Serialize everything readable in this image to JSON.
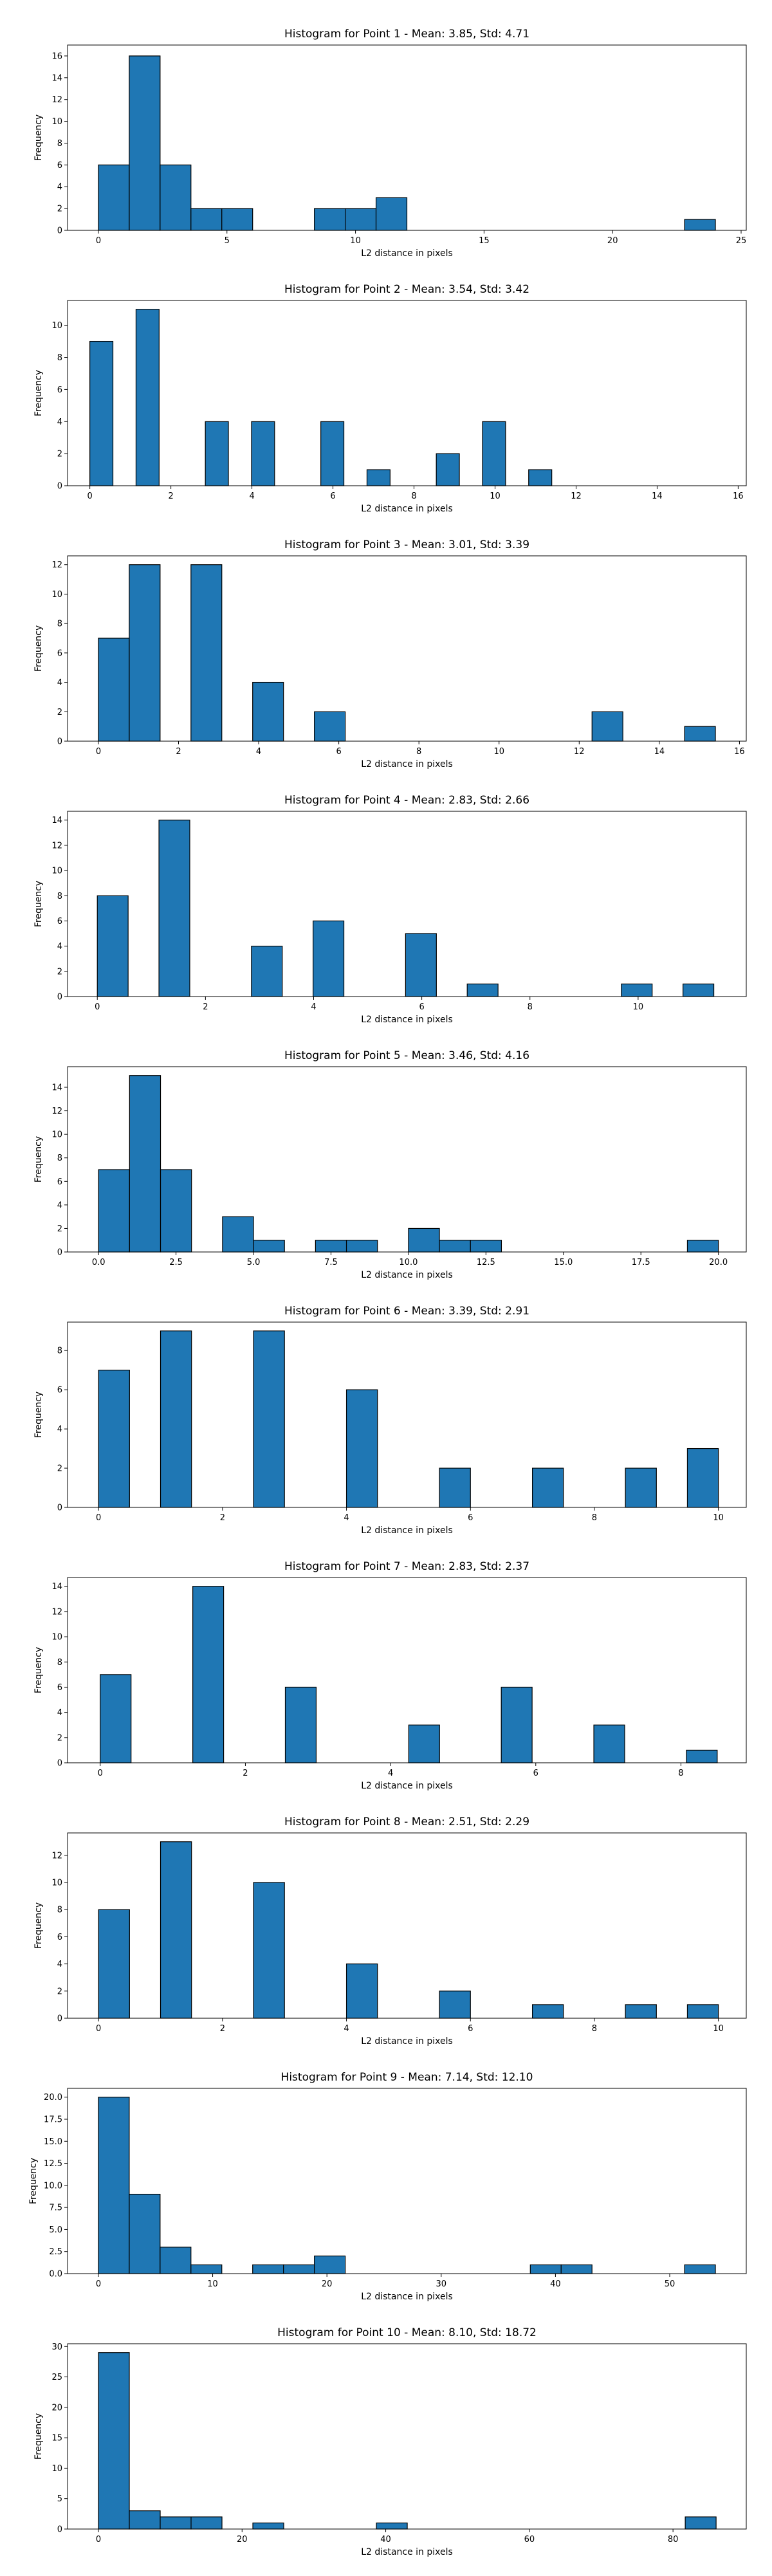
{
  "figure": {
    "xlabel": "L2 distance in pixels",
    "ylabel": "Frequency",
    "bar_color": "#1f77b4",
    "edge_color": "#000000"
  },
  "chart_data": [
    {
      "type": "bar",
      "title": "Histogram for Point 1 - Mean: 3.85, Std: 4.71",
      "xlabel": "L2 distance in pixels",
      "ylabel": "Frequency",
      "xlim": [
        -1.2,
        25.2
      ],
      "ylim": [
        0,
        17
      ],
      "xticks": [
        0,
        5,
        10,
        15,
        20,
        25
      ],
      "xtick_labels": [
        "0",
        "5",
        "10",
        "15",
        "20",
        "25"
      ],
      "yticks": [
        0,
        2,
        4,
        6,
        8,
        10,
        12,
        14,
        16
      ],
      "bin_width": 1.2,
      "bins": [
        {
          "start": 0,
          "count": 6
        },
        {
          "start": 1.2,
          "count": 16
        },
        {
          "start": 2.4,
          "count": 6
        },
        {
          "start": 3.6,
          "count": 2
        },
        {
          "start": 4.8,
          "count": 2
        },
        {
          "start": 8.4,
          "count": 2
        },
        {
          "start": 9.6,
          "count": 2
        },
        {
          "start": 10.8,
          "count": 3
        },
        {
          "start": 22.8,
          "count": 1
        }
      ]
    },
    {
      "type": "bar",
      "title": "Histogram for Point 2 - Mean: 3.54, Std: 3.42",
      "xlabel": "L2 distance in pixels",
      "ylabel": "Frequency",
      "xlim": [
        -0.55,
        16.2
      ],
      "ylim": [
        0,
        11.55
      ],
      "xticks": [
        0,
        2,
        4,
        6,
        8,
        10,
        12,
        14,
        16
      ],
      "xtick_labels": [
        "0",
        "2",
        "4",
        "6",
        "8",
        "10",
        "12",
        "14",
        "16"
      ],
      "yticks": [
        0,
        2,
        4,
        6,
        8,
        10
      ],
      "bin_width": 0.57,
      "bins": [
        {
          "start": 0,
          "count": 9
        },
        {
          "start": 1.14,
          "count": 11
        },
        {
          "start": 2.85,
          "count": 4
        },
        {
          "start": 3.99,
          "count": 4
        },
        {
          "start": 5.7,
          "count": 4
        },
        {
          "start": 6.84,
          "count": 1
        },
        {
          "start": 8.55,
          "count": 2
        },
        {
          "start": 9.69,
          "count": 4
        },
        {
          "start": 10.83,
          "count": 1
        }
      ]
    },
    {
      "type": "bar",
      "title": "Histogram for Point 3 - Mean: 3.01, Std: 3.39",
      "xlabel": "L2 distance in pixels",
      "ylabel": "Frequency",
      "xlim": [
        -0.77,
        16.17
      ],
      "ylim": [
        0,
        12.6
      ],
      "xticks": [
        0,
        2,
        4,
        6,
        8,
        10,
        12,
        14,
        16
      ],
      "xtick_labels": [
        "0",
        "2",
        "4",
        "6",
        "8",
        "10",
        "12",
        "14",
        "16"
      ],
      "yticks": [
        0,
        2,
        4,
        6,
        8,
        10,
        12
      ],
      "bin_width": 0.77,
      "bins": [
        {
          "start": 0,
          "count": 7
        },
        {
          "start": 0.77,
          "count": 12
        },
        {
          "start": 2.31,
          "count": 12
        },
        {
          "start": 3.85,
          "count": 4
        },
        {
          "start": 5.39,
          "count": 2
        },
        {
          "start": 12.32,
          "count": 2
        },
        {
          "start": 14.63,
          "count": 1
        }
      ]
    },
    {
      "type": "bar",
      "title": "Histogram for Point 4 - Mean: 2.83, Std: 2.66",
      "xlabel": "L2 distance in pixels",
      "ylabel": "Frequency",
      "xlim": [
        -0.55,
        12.0
      ],
      "ylim": [
        0,
        14.7
      ],
      "xticks": [
        0,
        2,
        4,
        6,
        8,
        10
      ],
      "xtick_labels": [
        "0",
        "2",
        "4",
        "6",
        "8",
        "10"
      ],
      "yticks": [
        0,
        2,
        4,
        6,
        8,
        10,
        12,
        14
      ],
      "bin_width": 0.57,
      "bins": [
        {
          "start": 0,
          "count": 8
        },
        {
          "start": 1.14,
          "count": 14
        },
        {
          "start": 2.85,
          "count": 4
        },
        {
          "start": 3.99,
          "count": 6
        },
        {
          "start": 5.7,
          "count": 5
        },
        {
          "start": 6.84,
          "count": 1
        },
        {
          "start": 9.69,
          "count": 1
        },
        {
          "start": 10.83,
          "count": 1
        }
      ]
    },
    {
      "type": "bar",
      "title": "Histogram for Point 5 - Mean: 3.46, Std: 4.16",
      "xlabel": "L2 distance in pixels",
      "ylabel": "Frequency",
      "xlim": [
        -1.0,
        20.9
      ],
      "ylim": [
        0,
        15.75
      ],
      "xticks": [
        0,
        2.5,
        5,
        7.5,
        10,
        12.5,
        15,
        17.5,
        20
      ],
      "xtick_labels": [
        "0.0",
        "2.5",
        "5.0",
        "7.5",
        "10.0",
        "12.5",
        "15.0",
        "17.5",
        "20.0"
      ],
      "yticks": [
        0,
        2,
        4,
        6,
        8,
        10,
        12,
        14
      ],
      "bin_width": 1.0,
      "bins": [
        {
          "start": 0,
          "count": 7
        },
        {
          "start": 1.0,
          "count": 15
        },
        {
          "start": 2.0,
          "count": 7
        },
        {
          "start": 4.0,
          "count": 3
        },
        {
          "start": 5.0,
          "count": 1
        },
        {
          "start": 7.0,
          "count": 1
        },
        {
          "start": 8.0,
          "count": 1
        },
        {
          "start": 10.0,
          "count": 2
        },
        {
          "start": 11.0,
          "count": 1
        },
        {
          "start": 12.0,
          "count": 1
        },
        {
          "start": 19.0,
          "count": 1
        }
      ]
    },
    {
      "type": "bar",
      "title": "Histogram for Point 6 - Mean: 3.39, Std: 2.91",
      "xlabel": "L2 distance in pixels",
      "ylabel": "Frequency",
      "xlim": [
        -0.5,
        10.45
      ],
      "ylim": [
        0,
        9.45
      ],
      "xticks": [
        0,
        2,
        4,
        6,
        8,
        10
      ],
      "xtick_labels": [
        "0",
        "2",
        "4",
        "6",
        "8",
        "10"
      ],
      "yticks": [
        0,
        2,
        4,
        6,
        8
      ],
      "bin_width": 0.5,
      "bins": [
        {
          "start": 0,
          "count": 7
        },
        {
          "start": 1.0,
          "count": 9
        },
        {
          "start": 2.5,
          "count": 9
        },
        {
          "start": 4.0,
          "count": 6
        },
        {
          "start": 5.5,
          "count": 2
        },
        {
          "start": 7.0,
          "count": 2
        },
        {
          "start": 8.5,
          "count": 2
        },
        {
          "start": 9.5,
          "count": 3
        }
      ]
    },
    {
      "type": "bar",
      "title": "Histogram for Point 7 - Mean: 2.83, Std: 2.37",
      "xlabel": "L2 distance in pixels",
      "ylabel": "Frequency",
      "xlim": [
        -0.45,
        8.9
      ],
      "ylim": [
        0,
        14.7
      ],
      "xticks": [
        0,
        2,
        4,
        6,
        8
      ],
      "xtick_labels": [
        "0",
        "2",
        "4",
        "6",
        "8"
      ],
      "yticks": [
        0,
        2,
        4,
        6,
        8,
        10,
        12,
        14
      ],
      "bin_width": 0.425,
      "bins": [
        {
          "start": 0,
          "count": 7
        },
        {
          "start": 1.275,
          "count": 14
        },
        {
          "start": 2.55,
          "count": 6
        },
        {
          "start": 4.25,
          "count": 3
        },
        {
          "start": 5.525,
          "count": 6
        },
        {
          "start": 6.8,
          "count": 3
        },
        {
          "start": 8.075,
          "count": 1
        }
      ]
    },
    {
      "type": "bar",
      "title": "Histogram for Point 8 - Mean: 2.51, Std: 2.29",
      "xlabel": "L2 distance in pixels",
      "ylabel": "Frequency",
      "xlim": [
        -0.5,
        10.45
      ],
      "ylim": [
        0,
        13.65
      ],
      "xticks": [
        0,
        2,
        4,
        6,
        8,
        10
      ],
      "xtick_labels": [
        "0",
        "2",
        "4",
        "6",
        "8",
        "10"
      ],
      "yticks": [
        0,
        2,
        4,
        6,
        8,
        10,
        12
      ],
      "bin_width": 0.5,
      "bins": [
        {
          "start": 0,
          "count": 8
        },
        {
          "start": 1.0,
          "count": 13
        },
        {
          "start": 2.5,
          "count": 10
        },
        {
          "start": 4.0,
          "count": 4
        },
        {
          "start": 5.5,
          "count": 2
        },
        {
          "start": 7.0,
          "count": 1
        },
        {
          "start": 8.5,
          "count": 1
        },
        {
          "start": 9.5,
          "count": 1
        }
      ]
    },
    {
      "type": "bar",
      "title": "Histogram for Point 9 - Mean: 7.14, Std: 12.10",
      "xlabel": "L2 distance in pixels",
      "ylabel": "Frequency",
      "xlim": [
        -2.7,
        56.7
      ],
      "ylim": [
        0,
        21.0
      ],
      "xticks": [
        0,
        10,
        20,
        30,
        40,
        50
      ],
      "xtick_labels": [
        "0",
        "10",
        "20",
        "30",
        "40",
        "50"
      ],
      "yticks": [
        0,
        2.5,
        5,
        7.5,
        10,
        12.5,
        15,
        17.5,
        20
      ],
      "ytick_labels": [
        "0.0",
        "2.5",
        "5.0",
        "7.5",
        "10.0",
        "12.5",
        "15.0",
        "17.5",
        "20.0"
      ],
      "bin_width": 2.7,
      "bins": [
        {
          "start": 0,
          "count": 20
        },
        {
          "start": 2.7,
          "count": 9
        },
        {
          "start": 5.4,
          "count": 3
        },
        {
          "start": 8.1,
          "count": 1
        },
        {
          "start": 13.5,
          "count": 1
        },
        {
          "start": 16.2,
          "count": 1
        },
        {
          "start": 18.9,
          "count": 2
        },
        {
          "start": 37.8,
          "count": 1
        },
        {
          "start": 40.5,
          "count": 1
        },
        {
          "start": 51.3,
          "count": 1
        }
      ]
    },
    {
      "type": "bar",
      "title": "Histogram for Point 10 - Mean: 8.10, Std: 18.72",
      "xlabel": "L2 distance in pixels",
      "ylabel": "Frequency",
      "xlim": [
        -4.3,
        90.2
      ],
      "ylim": [
        0,
        30.45
      ],
      "xticks": [
        0,
        20,
        40,
        60,
        80
      ],
      "xtick_labels": [
        "0",
        "20",
        "40",
        "60",
        "80"
      ],
      "yticks": [
        0,
        5,
        10,
        15,
        20,
        25,
        30
      ],
      "bin_width": 4.3,
      "bins": [
        {
          "start": 0,
          "count": 29
        },
        {
          "start": 4.3,
          "count": 3
        },
        {
          "start": 8.6,
          "count": 2
        },
        {
          "start": 12.9,
          "count": 2
        },
        {
          "start": 21.5,
          "count": 1
        },
        {
          "start": 38.7,
          "count": 1
        },
        {
          "start": 81.7,
          "count": 2
        }
      ]
    }
  ]
}
